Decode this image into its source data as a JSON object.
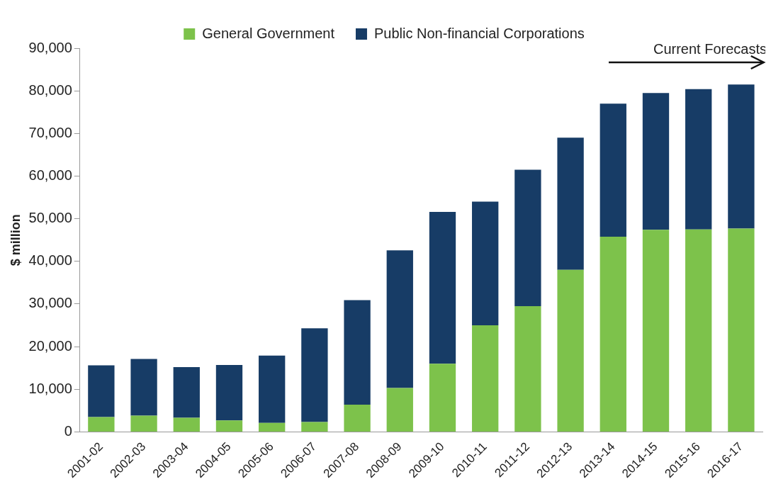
{
  "chart_data": {
    "type": "bar",
    "stacked": true,
    "ylabel": "$ million",
    "categories": [
      "2001-02",
      "2002-03",
      "2003-04",
      "2004-05",
      "2005-06",
      "2006-07",
      "2007-08",
      "2008-09",
      "2009-10",
      "2010-11",
      "2011-12",
      "2012-13",
      "2013-14",
      "2014-15",
      "2015-16",
      "2016-17"
    ],
    "series": [
      {
        "name": "General Government",
        "color": "#7dc24b",
        "values": [
          3500,
          3800,
          3300,
          2700,
          2100,
          2300,
          6400,
          10300,
          16000,
          25000,
          29500,
          38000,
          45800,
          47400,
          47500,
          47700
        ]
      },
      {
        "name": "Public Non-financial Corporations",
        "color": "#173c66",
        "values": [
          12100,
          13300,
          11900,
          13000,
          15800,
          22000,
          24500,
          32300,
          35600,
          29000,
          32000,
          31000,
          31200,
          32100,
          32900,
          33800
        ]
      }
    ],
    "ylim": [
      0,
      90000
    ],
    "yticks": [
      0,
      {
        "value": 10000,
        "label": "10,000"
      },
      {
        "value": 20000,
        "label": "20,000"
      },
      {
        "value": 30000,
        "label": "30,000"
      },
      {
        "value": 40000,
        "label": "40,000"
      },
      {
        "value": 50000,
        "label": "50,000"
      },
      {
        "value": 60000,
        "label": "60,000"
      },
      {
        "value": 70000,
        "label": "70,000"
      },
      {
        "value": 80000,
        "label": "80,000"
      },
      {
        "value": 90000,
        "label": "90,000"
      }
    ],
    "grid": false,
    "legend": "top",
    "annotations": [
      "Current Forecasts"
    ]
  }
}
